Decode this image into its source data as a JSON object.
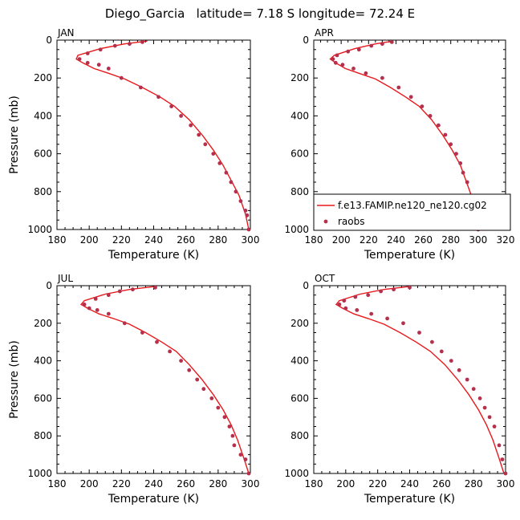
{
  "title": "Diego_Garcia   latitude= 7.18 S longitude= 72.24 E",
  "chart_data": [
    {
      "type": "line",
      "panel": "JAN",
      "xlabel": "Temperature (K)",
      "ylabel": "Pressure (mb)",
      "xlim": [
        180,
        300
      ],
      "ylim": [
        1000,
        0
      ],
      "xticks": [
        180,
        200,
        220,
        240,
        260,
        280,
        300
      ],
      "yticks": [
        0,
        200,
        400,
        600,
        800,
        1000
      ],
      "series": [
        {
          "name": "f.e13.FAMIP.ne120_ne120.cg02",
          "kind": "line",
          "color": "#e8191c",
          "x": [
            236,
            222,
            207,
            193,
            192,
            196,
            203,
            212,
            222,
            233,
            244,
            253,
            262,
            270,
            277,
            283,
            288,
            293,
            297,
            299
          ],
          "y": [
            5,
            20,
            45,
            80,
            100,
            120,
            150,
            175,
            205,
            250,
            300,
            350,
            420,
            500,
            580,
            660,
            740,
            820,
            920,
            1000
          ]
        },
        {
          "name": "raobs",
          "kind": "scatter",
          "color": "#b5304c",
          "x": [
            233,
            225,
            216,
            207,
            199,
            194,
            199,
            206,
            212,
            220,
            232,
            243,
            251,
            257,
            263,
            268,
            272,
            277,
            281,
            285,
            288,
            291,
            294,
            297,
            298,
            299
          ],
          "y": [
            10,
            20,
            30,
            50,
            70,
            100,
            120,
            130,
            150,
            200,
            250,
            300,
            350,
            400,
            450,
            500,
            550,
            600,
            650,
            700,
            750,
            800,
            850,
            900,
            925,
            1000
          ]
        }
      ]
    },
    {
      "type": "line",
      "panel": "APR",
      "xlabel": "Temperature (K)",
      "ylabel": "",
      "xlim": [
        180,
        320
      ],
      "ylim": [
        1000,
        0
      ],
      "xticks": [
        180,
        200,
        220,
        240,
        260,
        280,
        300,
        320
      ],
      "yticks": [
        0,
        200,
        400,
        600,
        800,
        1000
      ],
      "legend": {
        "position": "bottom-right",
        "entries": [
          "f.e13.FAMIP.ne120_ne120.cg02",
          "raobs"
        ]
      },
      "series": [
        {
          "name": "f.e13.FAMIP.ne120_ne120.cg02",
          "kind": "line",
          "color": "#e8191c",
          "x": [
            238,
            225,
            210,
            195,
            192,
            196,
            203,
            213,
            225,
            236,
            247,
            257,
            266,
            274,
            281,
            287,
            291,
            295,
            298,
            300
          ],
          "y": [
            5,
            20,
            45,
            80,
            100,
            120,
            150,
            175,
            205,
            250,
            300,
            350,
            420,
            500,
            580,
            660,
            740,
            820,
            920,
            1000
          ]
        },
        {
          "name": "raobs",
          "kind": "scatter",
          "color": "#b5304c",
          "x": [
            237,
            230,
            222,
            213,
            205,
            197,
            194,
            196,
            201,
            209,
            218,
            230,
            242,
            251,
            259,
            265,
            271,
            276,
            280,
            284,
            287,
            289,
            292,
            296,
            298,
            300
          ],
          "y": [
            10,
            20,
            30,
            50,
            60,
            80,
            100,
            120,
            130,
            150,
            175,
            200,
            250,
            300,
            350,
            400,
            450,
            500,
            550,
            600,
            650,
            700,
            750,
            850,
            925,
            1000
          ]
        }
      ]
    },
    {
      "type": "line",
      "panel": "JUL",
      "xlabel": "Temperature (K)",
      "ylabel": "Pressure (mb)",
      "xlim": [
        180,
        300
      ],
      "ylim": [
        1000,
        0
      ],
      "xticks": [
        180,
        200,
        220,
        240,
        260,
        280,
        300
      ],
      "yticks": [
        0,
        200,
        400,
        600,
        800,
        1000
      ],
      "series": [
        {
          "name": "f.e13.FAMIP.ne120_ne120.cg02",
          "kind": "line",
          "color": "#e8191c",
          "x": [
            240,
            225,
            210,
            197,
            195,
            199,
            206,
            215,
            225,
            235,
            245,
            254,
            262,
            270,
            277,
            283,
            288,
            292,
            296,
            299
          ],
          "y": [
            5,
            20,
            45,
            80,
            100,
            120,
            150,
            175,
            205,
            250,
            300,
            350,
            420,
            500,
            580,
            660,
            740,
            820,
            920,
            1000
          ]
        },
        {
          "name": "raobs",
          "kind": "scatter",
          "color": "#b5304c",
          "x": [
            241,
            227,
            219,
            212,
            204,
            197,
            200,
            205,
            212,
            222,
            233,
            242,
            250,
            257,
            262,
            267,
            271,
            276,
            280,
            284,
            287,
            289,
            290,
            294,
            297,
            299
          ],
          "y": [
            10,
            20,
            30,
            50,
            70,
            100,
            120,
            130,
            150,
            200,
            250,
            300,
            350,
            400,
            450,
            500,
            550,
            600,
            650,
            700,
            750,
            800,
            850,
            900,
            925,
            1000
          ]
        }
      ]
    },
    {
      "type": "line",
      "panel": "OCT",
      "xlabel": "Temperature (K)",
      "ylabel": "",
      "xlim": [
        180,
        300
      ],
      "ylim": [
        1000,
        0
      ],
      "xticks": [
        180,
        200,
        220,
        240,
        260,
        280,
        300
      ],
      "yticks": [
        0,
        200,
        400,
        600,
        800,
        1000
      ],
      "series": [
        {
          "name": "f.e13.FAMIP.ne120_ne120.cg02",
          "kind": "line",
          "color": "#e8191c",
          "x": [
            239,
            224,
            209,
            196,
            194,
            198,
            205,
            214,
            224,
            234,
            244,
            253,
            262,
            270,
            277,
            283,
            288,
            292,
            296,
            299
          ],
          "y": [
            5,
            20,
            45,
            80,
            100,
            120,
            150,
            175,
            205,
            250,
            300,
            350,
            420,
            500,
            580,
            660,
            740,
            820,
            920,
            1000
          ]
        },
        {
          "name": "raobs",
          "kind": "scatter",
          "color": "#b5304c",
          "x": [
            240,
            230,
            222,
            214,
            206,
            199,
            196,
            200,
            207,
            216,
            226,
            236,
            246,
            254,
            260,
            266,
            271,
            276,
            280,
            284,
            287,
            290,
            293,
            296,
            298,
            300
          ],
          "y": [
            10,
            20,
            30,
            50,
            60,
            80,
            100,
            120,
            130,
            150,
            175,
            200,
            250,
            300,
            350,
            400,
            450,
            500,
            550,
            600,
            650,
            700,
            750,
            850,
            925,
            1000
          ]
        }
      ]
    }
  ]
}
